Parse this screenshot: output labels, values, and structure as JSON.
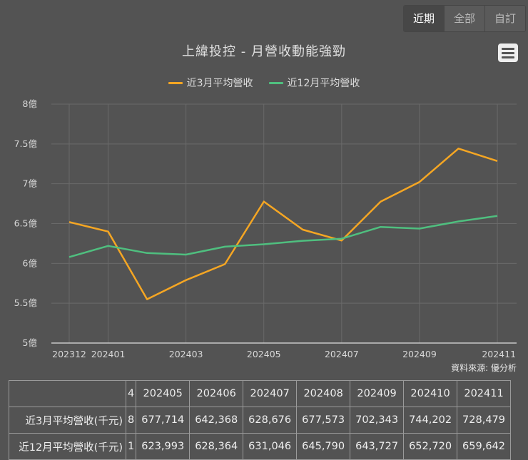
{
  "range_selector": {
    "buttons": [
      {
        "label": "近期",
        "active": true
      },
      {
        "label": "全部",
        "active": false
      },
      {
        "label": "自訂",
        "active": false
      }
    ]
  },
  "menu": {
    "icon": "hamburger-menu-icon"
  },
  "chart_data": {
    "type": "line",
    "title": "上緯投控 - 月營收動能強勁",
    "xlabel": "",
    "ylabel": "",
    "x": [
      "202312",
      "202401",
      "202402",
      "202403",
      "202404",
      "202405",
      "202406",
      "202407",
      "202408",
      "202409",
      "202410",
      "202411"
    ],
    "x_tick_labels": [
      "202312",
      "202401",
      "202403",
      "202405",
      "202407",
      "202409",
      "202411"
    ],
    "y_tick_labels": [
      "5億",
      "5.5億",
      "6億",
      "6.5億",
      "7億",
      "7.5億",
      "8億"
    ],
    "ylim": [
      5,
      8
    ],
    "y_unit": "億",
    "grid": true,
    "legend_position": "top",
    "series": [
      {
        "name": "近3月平均營收",
        "color": "#f5a623",
        "values": [
          6.52,
          6.4,
          5.55,
          5.79,
          5.99,
          6.777,
          6.424,
          6.287,
          6.776,
          7.023,
          7.442,
          7.285
        ]
      },
      {
        "name": "近12月平均營收",
        "color": "#4fbf7f",
        "values": [
          6.08,
          6.22,
          6.13,
          6.11,
          6.21,
          6.24,
          6.284,
          6.31,
          6.458,
          6.437,
          6.527,
          6.596
        ]
      }
    ],
    "credits": "資料來源: 優分析"
  },
  "table": {
    "partial_left_column": {
      "header": "4",
      "row1": "8",
      "row2": "1"
    },
    "columns": [
      "202405",
      "202406",
      "202407",
      "202408",
      "202409",
      "202410",
      "202411"
    ],
    "rows": [
      {
        "label": "近3月平均營收(千元)",
        "values": [
          "677,714",
          "642,368",
          "628,676",
          "677,573",
          "702,343",
          "744,202",
          "728,479"
        ]
      },
      {
        "label": "近12月平均營收(千元)",
        "values": [
          "623,993",
          "628,364",
          "631,046",
          "645,790",
          "643,727",
          "652,720",
          "659,642"
        ]
      }
    ]
  }
}
